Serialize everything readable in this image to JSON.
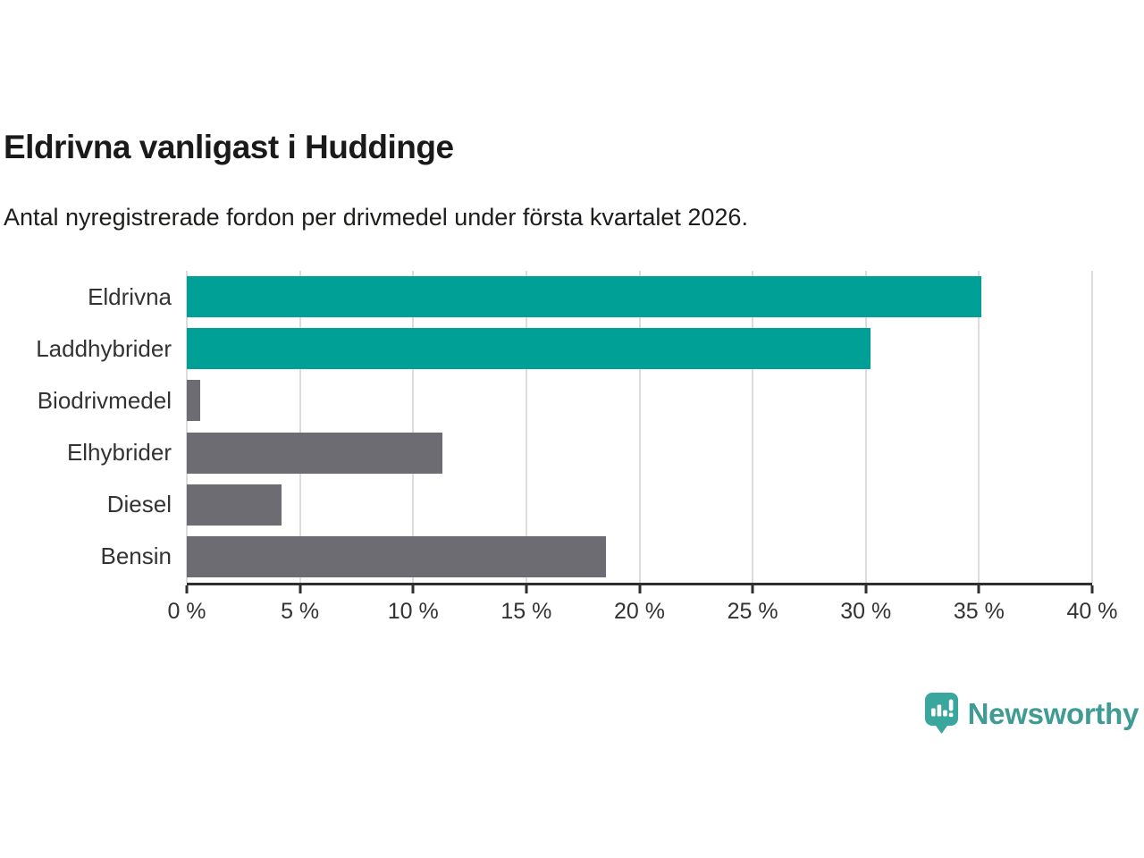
{
  "header": {
    "title": "Eldrivna vanligast i Huddinge",
    "subtitle": "Antal nyregistrerade fordon per drivmedel under första kvartalet 2026."
  },
  "chart_data": {
    "type": "bar",
    "orientation": "horizontal",
    "title": "Eldrivna vanligast i Huddinge",
    "subtitle": "Antal nyregistrerade fordon per drivmedel under första kvartalet 2026.",
    "categories": [
      "Eldrivna",
      "Laddhybrider",
      "Biodrivmedel",
      "Elhybrider",
      "Diesel",
      "Bensin"
    ],
    "values": [
      35.1,
      30.2,
      0.6,
      11.3,
      4.2,
      18.5
    ],
    "unit": "%",
    "xlim": [
      0,
      40
    ],
    "xticks": [
      0,
      5,
      10,
      15,
      20,
      25,
      30,
      35,
      40
    ],
    "xtick_labels": [
      "0 %",
      "5 %",
      "10 %",
      "15 %",
      "20 %",
      "25 %",
      "30 %",
      "35 %",
      "40 %"
    ],
    "bar_colors": [
      "#00a096",
      "#00a096",
      "#6c6c72",
      "#6c6c72",
      "#6c6c72",
      "#6c6c72"
    ],
    "highlight_color": "#00a096",
    "default_color": "#6c6c72",
    "grid": true,
    "gridline_color": "#dcdcdc",
    "axis_color": "#2f2f2f",
    "label_color": "#333333"
  },
  "branding": {
    "logo_text": "Newsworthy",
    "logo_icon": "newsworthy-speech-bubble-chart-icon",
    "logo_text_color": "#3f9b94",
    "logo_icon_color": "#3aa79e"
  }
}
